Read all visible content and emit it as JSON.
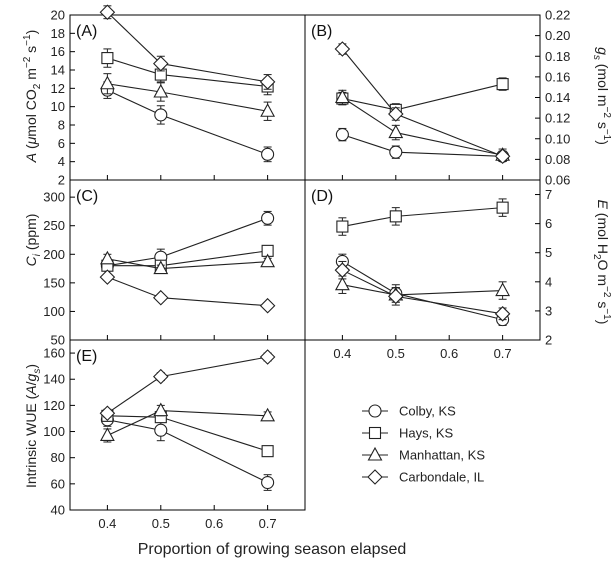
{
  "chart_data": {
    "type": "line",
    "x": [
      0.4,
      0.5,
      0.7
    ],
    "xlabel": "Proportion of growing season elapsed",
    "xticks": [
      "0.4",
      "0.5",
      "0.6",
      "0.7"
    ],
    "legend_position": "bottom-right",
    "series_names": [
      "Colby, KS",
      "Hays, KS",
      "Manhattan, KS",
      "Carbondale, IL"
    ],
    "markers": [
      "circle",
      "square",
      "triangle",
      "diamond"
    ],
    "panels": [
      {
        "id": "A",
        "label": "(A)",
        "side": "left",
        "ylabel": "A (μmol CO2 m−2 s−1)",
        "ylim": [
          2,
          20
        ],
        "yticks": [
          "2",
          "4",
          "6",
          "8",
          "10",
          "12",
          "14",
          "16",
          "18",
          "20"
        ],
        "series": [
          {
            "name": "Colby, KS",
            "values": [
              11.8,
              9.1,
              4.8
            ],
            "err": [
              0.9,
              1.0,
              0.8
            ]
          },
          {
            "name": "Hays, KS",
            "values": [
              15.3,
              13.5,
              12.2
            ],
            "err": [
              1.0,
              0.8,
              0.9
            ]
          },
          {
            "name": "Manhattan, KS",
            "values": [
              12.5,
              11.6,
              9.5
            ],
            "err": [
              1.1,
              1.0,
              1.0
            ]
          },
          {
            "name": "Carbondale, IL",
            "values": [
              20.3,
              14.7,
              12.7
            ],
            "err": [
              0.7,
              0.8,
              0.8
            ]
          }
        ]
      },
      {
        "id": "B",
        "label": "(B)",
        "side": "right",
        "ylabel": "gs (mol m−2 s−1)",
        "ylim": [
          0.06,
          0.22
        ],
        "yticks": [
          "0.06",
          "0.08",
          "0.10",
          "0.12",
          "0.14",
          "0.16",
          "0.18",
          "0.20",
          "0.22"
        ],
        "series": [
          {
            "name": "Colby, KS",
            "values": [
              0.104,
              0.087,
              0.083
            ],
            "err": [
              0.006,
              0.006,
              0.004
            ]
          },
          {
            "name": "Hays, KS",
            "values": [
              0.139,
              0.128,
              0.153
            ],
            "err": [
              0.006,
              0.006,
              0.006
            ]
          },
          {
            "name": "Manhattan, KS",
            "values": [
              0.14,
              0.106,
              0.084
            ],
            "err": [
              0.007,
              0.007,
              0.006
            ]
          },
          {
            "name": "Carbondale, IL",
            "values": [
              0.187,
              0.124,
              0.083
            ],
            "err": [
              0.005,
              0.006,
              0.005
            ]
          }
        ]
      },
      {
        "id": "C",
        "label": "(C)",
        "side": "left",
        "ylabel": "Ci (ppm)",
        "ylim": [
          50,
          330
        ],
        "yticks": [
          "50",
          "100",
          "150",
          "200",
          "250",
          "300"
        ],
        "series": [
          {
            "name": "Colby, KS",
            "values": [
              180,
              195,
              263
            ],
            "err": [
              8,
              14,
              12
            ]
          },
          {
            "name": "Hays, KS",
            "values": [
              180,
              180,
              206
            ],
            "err": [
              6,
              6,
              6
            ]
          },
          {
            "name": "Manhattan, KS",
            "values": [
              192,
              175,
              187
            ],
            "err": [
              8,
              6,
              6
            ]
          },
          {
            "name": "Carbondale, IL",
            "values": [
              160,
              124,
              110
            ],
            "err": [
              4,
              4,
              4
            ]
          }
        ]
      },
      {
        "id": "D",
        "label": "(D)",
        "side": "right",
        "ylabel": "E (mol H2O m−2 s−1)",
        "ylim": [
          2,
          7.5
        ],
        "yticks": [
          "2",
          "3",
          "4",
          "5",
          "6",
          "7"
        ],
        "series": [
          {
            "name": "Colby, KS",
            "values": [
              4.7,
              3.6,
              2.7
            ],
            "err": [
              0.25,
              0.3,
              0.2
            ]
          },
          {
            "name": "Hays, KS",
            "values": [
              5.9,
              6.25,
              6.55
            ],
            "err": [
              0.3,
              0.3,
              0.3
            ]
          },
          {
            "name": "Manhattan, KS",
            "values": [
              3.9,
              3.55,
              3.7
            ],
            "err": [
              0.3,
              0.25,
              0.3
            ]
          },
          {
            "name": "Carbondale, IL",
            "values": [
              4.4,
              3.5,
              2.9
            ],
            "err": [
              0.3,
              0.3,
              0.2
            ]
          }
        ]
      },
      {
        "id": "E",
        "label": "(E)",
        "side": "left",
        "ylabel": "Intrinsic WUE (A/gs)",
        "ylim": [
          40,
          170
        ],
        "yticks": [
          "40",
          "60",
          "80",
          "100",
          "120",
          "140",
          "160"
        ],
        "series": [
          {
            "name": "Colby, KS",
            "values": [
              109,
              101,
              61
            ],
            "err": [
              5,
              8,
              6
            ]
          },
          {
            "name": "Hays, KS",
            "values": [
              112,
              111,
              85
            ],
            "err": [
              4,
              4,
              3
            ]
          },
          {
            "name": "Manhattan, KS",
            "values": [
              97,
              116,
              112
            ],
            "err": [
              5,
              4,
              3
            ]
          },
          {
            "name": "Carbondale, IL",
            "values": [
              114,
              142,
              157
            ],
            "err": [
              3,
              3,
              3
            ]
          }
        ]
      }
    ]
  }
}
